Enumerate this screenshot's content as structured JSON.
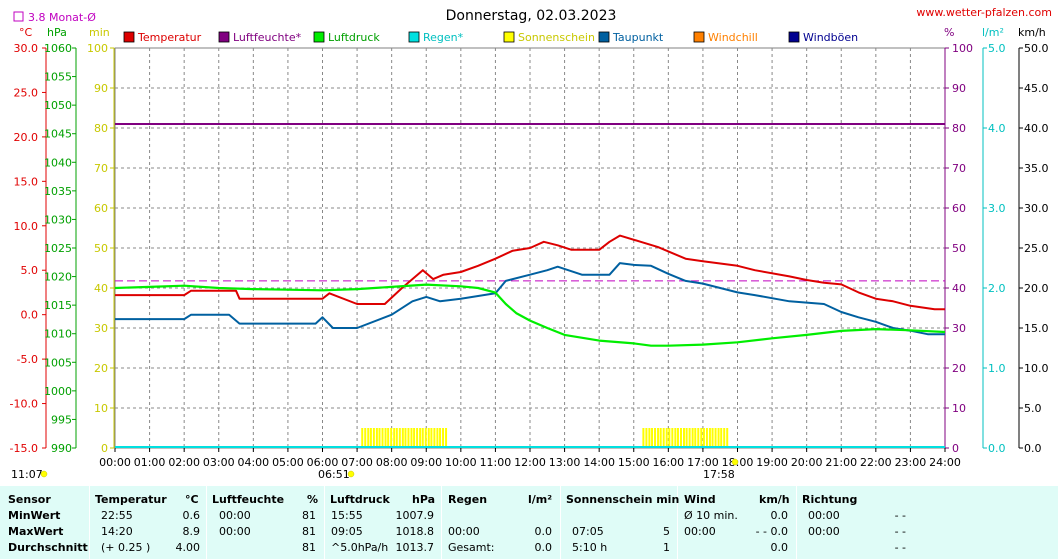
{
  "title": "Donnerstag, 02.03.2023",
  "site": "www.wetter-pfalzen.com",
  "avg_box": "3.8 Monat-Ø",
  "units_left": [
    "°C",
    "hPa",
    "min"
  ],
  "units_right": [
    "%",
    "l/m²",
    "km/h"
  ],
  "colors": {
    "temperature": "#dd0000",
    "humidity": "#800080",
    "pressure": "#00ee00",
    "rain": "#00e0e0",
    "sunshine": "#ffff00",
    "dewpoint": "#0060a0",
    "windchill": "#ff8000",
    "gusts": "#000090",
    "stats_bg": "#dffcf7"
  },
  "sun": {
    "rise": "06:51",
    "set": "17:58",
    "moon": "11:07"
  },
  "chart_data": {
    "type": "line",
    "x_labels": [
      "00:00",
      "01:00",
      "02:00",
      "03:00",
      "04:00",
      "05:00",
      "06:00",
      "07:00",
      "08:00",
      "09:00",
      "10:00",
      "11:00",
      "12:00",
      "13:00",
      "14:00",
      "15:00",
      "16:00",
      "17:00",
      "18:00",
      "19:00",
      "20:00",
      "21:00",
      "22:00",
      "23:00",
      "24:00"
    ],
    "x_unit": "hours",
    "xlim": [
      0,
      24
    ],
    "axes": {
      "temperature": {
        "unit": "°C",
        "range": [
          -15,
          30
        ],
        "ticks": [
          "30.0",
          "25.0",
          "20.0",
          "15.0",
          "10.0",
          "5.0",
          "0.0",
          "-5.0",
          "-10.0",
          "-15.0"
        ]
      },
      "pressure": {
        "unit": "hPa",
        "range": [
          990,
          1060
        ],
        "ticks": [
          "1060",
          "1055",
          "1050",
          "1045",
          "1040",
          "1035",
          "1030",
          "1025",
          "1020",
          "1015",
          "1010",
          "1005",
          "1000",
          "995",
          "990"
        ]
      },
      "sunshine": {
        "unit": "min",
        "range": [
          0,
          100
        ],
        "ticks": [
          "100",
          "90",
          "80",
          "70",
          "60",
          "50",
          "40",
          "30",
          "20",
          "10",
          "0"
        ]
      },
      "humidity": {
        "unit": "%",
        "range": [
          0,
          100
        ],
        "ticks": [
          "100",
          "90",
          "80",
          "70",
          "60",
          "50",
          "40",
          "30",
          "20",
          "10",
          "0"
        ]
      },
      "rain": {
        "unit": "l/m²",
        "range": [
          0,
          5
        ],
        "ticks": [
          "5.0",
          "4.0",
          "3.0",
          "2.0",
          "1.0",
          "0.0"
        ]
      },
      "wind": {
        "unit": "km/h",
        "range": [
          0,
          50
        ],
        "ticks": [
          "50.0",
          "45.0",
          "40.0",
          "35.0",
          "30.0",
          "25.0",
          "20.0",
          "15.0",
          "10.0",
          "5.0",
          "0.0"
        ]
      }
    },
    "legend": [
      "Temperatur",
      "Luftfeuchte*",
      "Luftdruck",
      "Regen*",
      "Sonnenschein",
      "Taupunkt",
      "Windchill",
      "Windböen"
    ],
    "monthly_avg_temp": 3.8,
    "series": [
      {
        "name": "Temperatur",
        "axis": "temperature",
        "x": [
          0,
          2,
          2.2,
          3.5,
          3.6,
          6,
          6.2,
          7,
          7.8,
          8.3,
          8.9,
          9.2,
          9.5,
          10,
          10.5,
          11,
          11.5,
          12,
          12.4,
          12.8,
          13.2,
          14,
          14.3,
          14.6,
          15.2,
          15.7,
          16.5,
          17,
          18,
          18.5,
          19.5,
          20,
          20.5,
          21,
          21.5,
          22,
          22.5,
          23,
          23.7,
          24
        ],
        "y": [
          2.2,
          2.2,
          2.7,
          2.7,
          1.8,
          1.8,
          2.4,
          1.2,
          1.2,
          3.0,
          5.0,
          4.0,
          4.5,
          4.8,
          5.5,
          6.3,
          7.2,
          7.5,
          8.2,
          7.8,
          7.3,
          7.3,
          8.2,
          8.9,
          8.2,
          7.6,
          6.3,
          6.0,
          5.5,
          5.0,
          4.3,
          3.9,
          3.6,
          3.4,
          2.5,
          1.8,
          1.5,
          1.0,
          0.6,
          0.6
        ]
      },
      {
        "name": "Taupunkt",
        "axis": "temperature",
        "x": [
          0,
          2,
          2.2,
          3.3,
          3.6,
          5.8,
          6,
          6.3,
          7,
          8,
          8.6,
          9,
          9.4,
          10,
          11,
          11.3,
          12,
          12.5,
          12.8,
          13.5,
          14.3,
          14.6,
          15,
          15.5,
          16,
          16.5,
          17,
          18,
          18.5,
          19.5,
          20.5,
          21,
          21.5,
          22,
          22.5,
          23,
          23.5,
          24
        ],
        "y": [
          -0.5,
          -0.5,
          0,
          0,
          -1,
          -1,
          -0.3,
          -1.5,
          -1.5,
          0,
          1.5,
          2,
          1.5,
          1.8,
          2.4,
          3.8,
          4.5,
          5,
          5.4,
          4.5,
          4.5,
          5.8,
          5.6,
          5.5,
          4.6,
          3.8,
          3.5,
          2.5,
          2.2,
          1.5,
          1.2,
          0.3,
          -0.3,
          -0.8,
          -1.5,
          -1.8,
          -2.2,
          -2.2
        ]
      },
      {
        "name": "Luftdruck",
        "axis": "pressure",
        "x": [
          0,
          1,
          2,
          3,
          4,
          5,
          6,
          7,
          8,
          9,
          10,
          10.5,
          11,
          11.3,
          11.6,
          12,
          12.5,
          13,
          14,
          15,
          15.5,
          16,
          17,
          18,
          19,
          20,
          21,
          22,
          23,
          24
        ],
        "y": [
          1018,
          1018.2,
          1018.4,
          1018,
          1017.8,
          1017.7,
          1017.6,
          1017.8,
          1018.2,
          1018.6,
          1018.3,
          1018,
          1017.2,
          1015.2,
          1013.6,
          1012.3,
          1011,
          1009.8,
          1008.8,
          1008.3,
          1007.9,
          1007.9,
          1008.1,
          1008.5,
          1009.2,
          1009.8,
          1010.5,
          1010.8,
          1010.6,
          1010.3
        ]
      },
      {
        "name": "Luftfeuchte*",
        "axis": "humidity",
        "x": [
          0,
          24
        ],
        "y": [
          81,
          81
        ]
      },
      {
        "name": "Sonnenschein",
        "axis": "sunshine",
        "type": "bar",
        "x": [
          7.12,
          7.37,
          7.62,
          7.87,
          8.12,
          8.37,
          8.62,
          8.87,
          9.12,
          9.37,
          15.25,
          15.5,
          15.75,
          16,
          16.25,
          16.5,
          16.75,
          17,
          17.25,
          17.5
        ],
        "y": [
          5,
          5,
          5,
          5,
          5,
          5,
          5,
          5,
          5,
          5,
          5,
          5,
          5,
          5,
          5,
          5,
          5,
          5,
          5,
          5
        ]
      }
    ]
  },
  "stats": {
    "headers": [
      "Sensor",
      "Temperatur",
      "°C",
      "Luftfeuchte",
      "%",
      "Luftdruck",
      "hPa",
      "Regen",
      "l/m²",
      "Sonnenschein min",
      "Wind",
      "km/h",
      "Richtung"
    ],
    "row_labels": [
      "MinWert",
      "MaxWert",
      "Durchschnitt"
    ],
    "temp_time": [
      "22:55",
      "14:20",
      "(+ 0.25 )"
    ],
    "temp_val": [
      "0.6",
      "8.9",
      "4.00"
    ],
    "hum_time": [
      "00:00",
      "00:00",
      ""
    ],
    "hum_val": [
      "81",
      "81",
      "81"
    ],
    "press_time": [
      "15:55",
      "09:05",
      "^5.0hPa/h"
    ],
    "press_val": [
      "1007.9",
      "1018.8",
      "1013.7"
    ],
    "rain_time": [
      "",
      "00:00",
      "Gesamt:"
    ],
    "rain_val": [
      "",
      "0.0",
      "0.0"
    ],
    "sun_time": [
      "",
      "07:05",
      "5:10 h"
    ],
    "sun_val": [
      "",
      "5",
      "1"
    ],
    "wind_time": [
      "Ø 10 min.",
      "00:00",
      ""
    ],
    "wind_val": [
      "0.0",
      "- - 0.0",
      "0.0"
    ],
    "dir_time": [
      "00:00",
      "00:00",
      ""
    ],
    "dir_val": [
      "- -",
      "- -",
      "- -"
    ]
  }
}
